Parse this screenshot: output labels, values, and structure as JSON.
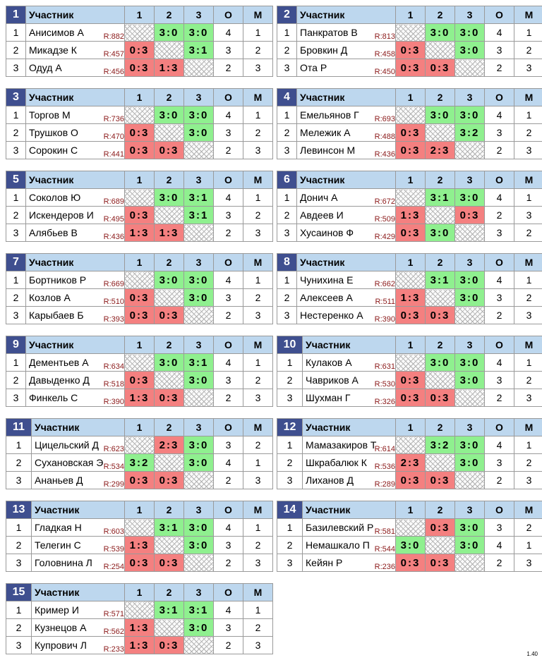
{
  "header": {
    "participant": "Участник",
    "c1": "1",
    "c2": "2",
    "c3": "3",
    "points": "О",
    "place": "М"
  },
  "groups": [
    {
      "number": "1",
      "rows": [
        {
          "idx": "1",
          "name": "Анисимов А",
          "rating": "R:882",
          "scores": [
            "",
            "3:0",
            "3:0"
          ],
          "points": "4",
          "place": "1"
        },
        {
          "idx": "2",
          "name": "Микадзе К",
          "rating": "R:457",
          "scores": [
            "0:3",
            "",
            "3:1"
          ],
          "points": "3",
          "place": "2"
        },
        {
          "idx": "3",
          "name": "Одуд А",
          "rating": "R:456",
          "scores": [
            "0:3",
            "1:3",
            ""
          ],
          "points": "2",
          "place": "3"
        }
      ]
    },
    {
      "number": "2",
      "rows": [
        {
          "idx": "1",
          "name": "Панкратов В",
          "rating": "R:813",
          "scores": [
            "",
            "3:0",
            "3:0"
          ],
          "points": "4",
          "place": "1"
        },
        {
          "idx": "2",
          "name": "Бровкин Д",
          "rating": "R:458",
          "scores": [
            "0:3",
            "",
            "3:0"
          ],
          "points": "3",
          "place": "2"
        },
        {
          "idx": "3",
          "name": "Ота Р",
          "rating": "R:450",
          "scores": [
            "0:3",
            "0:3",
            ""
          ],
          "points": "2",
          "place": "3"
        }
      ]
    },
    {
      "number": "3",
      "rows": [
        {
          "idx": "1",
          "name": "Торгов М",
          "rating": "R:736",
          "scores": [
            "",
            "3:0",
            "3:0"
          ],
          "points": "4",
          "place": "1"
        },
        {
          "idx": "2",
          "name": "Трушков О",
          "rating": "R:470",
          "scores": [
            "0:3",
            "",
            "3:0"
          ],
          "points": "3",
          "place": "2"
        },
        {
          "idx": "3",
          "name": "Сорокин С",
          "rating": "R:441",
          "scores": [
            "0:3",
            "0:3",
            ""
          ],
          "points": "2",
          "place": "3"
        }
      ]
    },
    {
      "number": "4",
      "rows": [
        {
          "idx": "1",
          "name": "Емельянов Г",
          "rating": "R:693",
          "scores": [
            "",
            "3:0",
            "3:0"
          ],
          "points": "4",
          "place": "1"
        },
        {
          "idx": "2",
          "name": "Мележик А",
          "rating": "R:488",
          "scores": [
            "0:3",
            "",
            "3:2"
          ],
          "points": "3",
          "place": "2"
        },
        {
          "idx": "3",
          "name": "Левинсон М",
          "rating": "R:436",
          "scores": [
            "0:3",
            "2:3",
            ""
          ],
          "points": "2",
          "place": "3"
        }
      ]
    },
    {
      "number": "5",
      "rows": [
        {
          "idx": "1",
          "name": "Соколов Ю",
          "rating": "R:689",
          "scores": [
            "",
            "3:0",
            "3:1"
          ],
          "points": "4",
          "place": "1"
        },
        {
          "idx": "2",
          "name": "Искендеров И",
          "rating": "R:495",
          "scores": [
            "0:3",
            "",
            "3:1"
          ],
          "points": "3",
          "place": "2"
        },
        {
          "idx": "3",
          "name": "Алябьев В",
          "rating": "R:436",
          "scores": [
            "1:3",
            "1:3",
            ""
          ],
          "points": "2",
          "place": "3"
        }
      ]
    },
    {
      "number": "6",
      "rows": [
        {
          "idx": "1",
          "name": "Донич А",
          "rating": "R:672",
          "scores": [
            "",
            "3:1",
            "3:0"
          ],
          "points": "4",
          "place": "1"
        },
        {
          "idx": "2",
          "name": "Авдеев И",
          "rating": "R:509",
          "scores": [
            "1:3",
            "",
            "0:3"
          ],
          "points": "2",
          "place": "3"
        },
        {
          "idx": "3",
          "name": "Хусаинов Ф",
          "rating": "R:429",
          "scores": [
            "0:3",
            "3:0",
            ""
          ],
          "points": "3",
          "place": "2"
        }
      ]
    },
    {
      "number": "7",
      "rows": [
        {
          "idx": "1",
          "name": "Бортников Р",
          "rating": "R:669",
          "scores": [
            "",
            "3:0",
            "3:0"
          ],
          "points": "4",
          "place": "1"
        },
        {
          "idx": "2",
          "name": "Козлов А",
          "rating": "R:510",
          "scores": [
            "0:3",
            "",
            "3:0"
          ],
          "points": "3",
          "place": "2"
        },
        {
          "idx": "3",
          "name": "Карыбаев Б",
          "rating": "R:393",
          "scores": [
            "0:3",
            "0:3",
            ""
          ],
          "points": "2",
          "place": "3"
        }
      ]
    },
    {
      "number": "8",
      "rows": [
        {
          "idx": "1",
          "name": "Чунихина Е",
          "rating": "R:662",
          "scores": [
            "",
            "3:1",
            "3:0"
          ],
          "points": "4",
          "place": "1"
        },
        {
          "idx": "2",
          "name": "Алексеев А",
          "rating": "R:511",
          "scores": [
            "1:3",
            "",
            "3:0"
          ],
          "points": "3",
          "place": "2"
        },
        {
          "idx": "3",
          "name": "Нестеренко А",
          "rating": "R:390",
          "scores": [
            "0:3",
            "0:3",
            ""
          ],
          "points": "2",
          "place": "3"
        }
      ]
    },
    {
      "number": "9",
      "rows": [
        {
          "idx": "1",
          "name": "Дементьев А",
          "rating": "R:634",
          "scores": [
            "",
            "3:0",
            "3:1"
          ],
          "points": "4",
          "place": "1"
        },
        {
          "idx": "2",
          "name": "Давыденко Д",
          "rating": "R:518",
          "scores": [
            "0:3",
            "",
            "3:0"
          ],
          "points": "3",
          "place": "2"
        },
        {
          "idx": "3",
          "name": "Финкель С",
          "rating": "R:390",
          "scores": [
            "1:3",
            "0:3",
            ""
          ],
          "points": "2",
          "place": "3"
        }
      ]
    },
    {
      "number": "10",
      "rows": [
        {
          "idx": "1",
          "name": "Кулаков А",
          "rating": "R:631",
          "scores": [
            "",
            "3:0",
            "3:0"
          ],
          "points": "4",
          "place": "1"
        },
        {
          "idx": "2",
          "name": "Чавриков А",
          "rating": "R:530",
          "scores": [
            "0:3",
            "",
            "3:0"
          ],
          "points": "3",
          "place": "2"
        },
        {
          "idx": "3",
          "name": "Шухман Г",
          "rating": "R:326",
          "scores": [
            "0:3",
            "0:3",
            ""
          ],
          "points": "2",
          "place": "3"
        }
      ]
    },
    {
      "number": "11",
      "rows": [
        {
          "idx": "1",
          "name": "Цицельский Д",
          "rating": "R:623",
          "scores": [
            "",
            "2:3",
            "3:0"
          ],
          "points": "3",
          "place": "2"
        },
        {
          "idx": "2",
          "name": "Сухановская Э",
          "rating": "R:534",
          "scores": [
            "3:2",
            "",
            "3:0"
          ],
          "points": "4",
          "place": "1"
        },
        {
          "idx": "3",
          "name": "Ананьев Д",
          "rating": "R:299",
          "scores": [
            "0:3",
            "0:3",
            ""
          ],
          "points": "2",
          "place": "3"
        }
      ]
    },
    {
      "number": "12",
      "rows": [
        {
          "idx": "1",
          "name": "Мамазакиров Т",
          "rating": "R:614",
          "scores": [
            "",
            "3:2",
            "3:0"
          ],
          "points": "4",
          "place": "1"
        },
        {
          "idx": "2",
          "name": "Шкрабалюк К",
          "rating": "R:536",
          "scores": [
            "2:3",
            "",
            "3:0"
          ],
          "points": "3",
          "place": "2"
        },
        {
          "idx": "3",
          "name": "Лиханов Д",
          "rating": "R:289",
          "scores": [
            "0:3",
            "0:3",
            ""
          ],
          "points": "2",
          "place": "3"
        }
      ]
    },
    {
      "number": "13",
      "rows": [
        {
          "idx": "1",
          "name": "Гладкая Н",
          "rating": "R:603",
          "scores": [
            "",
            "3:1",
            "3:0"
          ],
          "points": "4",
          "place": "1"
        },
        {
          "idx": "2",
          "name": "Телегин С",
          "rating": "R:539",
          "scores": [
            "1:3",
            "",
            "3:0"
          ],
          "points": "3",
          "place": "2"
        },
        {
          "idx": "3",
          "name": "Головнина Л",
          "rating": "R:254",
          "scores": [
            "0:3",
            "0:3",
            ""
          ],
          "points": "2",
          "place": "3"
        }
      ]
    },
    {
      "number": "14",
      "rows": [
        {
          "idx": "1",
          "name": "Базилевский Р",
          "rating": "R:581",
          "scores": [
            "",
            "0:3",
            "3:0"
          ],
          "points": "3",
          "place": "2"
        },
        {
          "idx": "2",
          "name": "Немашкало П",
          "rating": "R:544",
          "scores": [
            "3:0",
            "",
            "3:0"
          ],
          "points": "4",
          "place": "1"
        },
        {
          "idx": "3",
          "name": "Кейян Р",
          "rating": "R:236",
          "scores": [
            "0:3",
            "0:3",
            ""
          ],
          "points": "2",
          "place": "3"
        }
      ]
    },
    {
      "number": "15",
      "rows": [
        {
          "idx": "1",
          "name": "Кример И",
          "rating": "R:571",
          "scores": [
            "",
            "3:1",
            "3:1"
          ],
          "points": "4",
          "place": "1"
        },
        {
          "idx": "2",
          "name": "Кузнецов А",
          "rating": "R:562",
          "scores": [
            "1:3",
            "",
            "3:0"
          ],
          "points": "3",
          "place": "2"
        },
        {
          "idx": "3",
          "name": "Купрович Л",
          "rating": "R:233",
          "scores": [
            "1:3",
            "0:3",
            ""
          ],
          "points": "2",
          "place": "3"
        }
      ]
    }
  ],
  "footer": {
    "version": "1.40"
  },
  "colors": {
    "header_bg": "#bdd7ee",
    "group_num_bg": "#3f4f8f",
    "win": "#8ff08f",
    "loss": "#f48080",
    "rating": "#8b1a1a"
  }
}
